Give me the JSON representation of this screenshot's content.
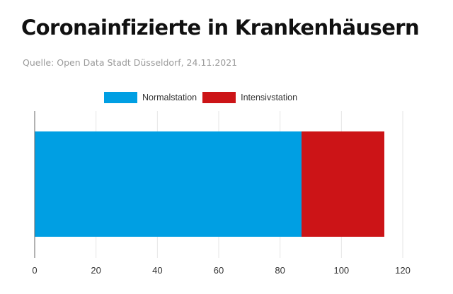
{
  "title": "Coronainfizierte in Krankenhäusern",
  "source": "Quelle: Open Data Stadt Düsseldorf, 24.11.2021",
  "chart_data": {
    "type": "bar",
    "orientation": "horizontal",
    "stacked": true,
    "categories": [
      ""
    ],
    "series": [
      {
        "name": "Normalstation",
        "values": [
          87
        ],
        "color": "#009fe3"
      },
      {
        "name": "Intensivstation",
        "values": [
          27
        ],
        "color": "#cc1417"
      }
    ],
    "xlim": [
      0,
      120
    ],
    "xticks": [
      0,
      20,
      40,
      60,
      80,
      100,
      120
    ],
    "grid": true,
    "legend": "top"
  }
}
